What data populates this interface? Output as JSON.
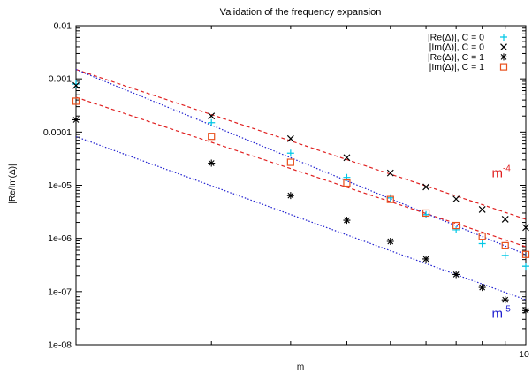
{
  "chart_data": {
    "type": "scatter",
    "title": "Validation of the frequency expansion",
    "xlabel": "m",
    "ylabel": "|Re/Im(Δ)|",
    "xscale": "log",
    "yscale": "log",
    "xlim": [
      1,
      10
    ],
    "ylim": [
      1e-08,
      0.01
    ],
    "grid": false,
    "legend_position": "top-right",
    "x_tick_labels": [
      {
        "x": 10,
        "label": "10"
      }
    ],
    "y_tick_labels": [
      {
        "y": 0.01,
        "label": "0.01"
      },
      {
        "y": 0.001,
        "label": "0.001"
      },
      {
        "y": 0.0001,
        "label": "0.0001"
      },
      {
        "y": 1e-05,
        "label": "1e-05"
      },
      {
        "y": 1e-06,
        "label": "1e-06"
      },
      {
        "y": 1e-07,
        "label": "1e-07"
      },
      {
        "y": 1e-08,
        "label": "1e-08"
      }
    ],
    "series": [
      {
        "name": "|Re(Δ)|, C = 0",
        "marker": "plus",
        "color": "#00c8e6",
        "x": [
          1,
          2,
          3,
          4,
          5,
          6,
          7,
          8,
          9,
          10
        ],
        "y": [
          0.0008,
          0.00015,
          4e-05,
          1.4e-05,
          5.8e-06,
          2.8e-06,
          1.45e-06,
          8e-07,
          4.8e-07,
          3e-07
        ]
      },
      {
        "name": "|Im(Δ)|, C = 0",
        "marker": "cross",
        "color": "#000000",
        "x": [
          1,
          2,
          3,
          4,
          5,
          6,
          7,
          8,
          9,
          10
        ],
        "y": [
          0.00075,
          0.0002,
          7.5e-05,
          3.3e-05,
          1.7e-05,
          9.3e-06,
          5.5e-06,
          3.5e-06,
          2.3e-06,
          1.6e-06
        ]
      },
      {
        "name": "|Re(Δ)|, C = 1",
        "marker": "star",
        "color": "#000000",
        "x": [
          1,
          2,
          3,
          4,
          5,
          6,
          7,
          8,
          9,
          10
        ],
        "y": [
          0.00017,
          2.6e-05,
          6.4e-06,
          2.2e-06,
          8.8e-07,
          4.1e-07,
          2.1e-07,
          1.2e-07,
          7e-08,
          4.4e-08
        ]
      },
      {
        "name": "|Im(Δ)|, C = 1",
        "marker": "square",
        "color": "#e8501c",
        "x": [
          1,
          2,
          3,
          4,
          5,
          6,
          7,
          8,
          9,
          10
        ],
        "y": [
          0.00038,
          8.3e-05,
          2.7e-05,
          1.1e-05,
          5.4e-06,
          3e-06,
          1.75e-06,
          1.1e-06,
          7.3e-07,
          5e-07
        ]
      }
    ],
    "fit_lines": [
      {
        "color": "#e02020",
        "x": [
          1,
          10
        ],
        "y": [
          0.0015,
          2.3e-06
        ]
      },
      {
        "color": "#e02020",
        "x": [
          1,
          10
        ],
        "y": [
          0.00045,
          7e-07
        ]
      },
      {
        "color": "#2020d0",
        "x": [
          1,
          10
        ],
        "y": [
          0.0015,
          5e-07
        ]
      },
      {
        "color": "#2020d0",
        "x": [
          1,
          10
        ],
        "y": [
          8.2e-05,
          7e-08
        ]
      }
    ],
    "annotations": [
      {
        "base": "m",
        "exponent": "-4",
        "color": "#e02020",
        "x": 8.4,
        "y": 1.4e-05
      },
      {
        "base": "m",
        "exponent": "-5",
        "color": "#2020d0",
        "x": 8.4,
        "y": 3.2e-08
      }
    ]
  }
}
